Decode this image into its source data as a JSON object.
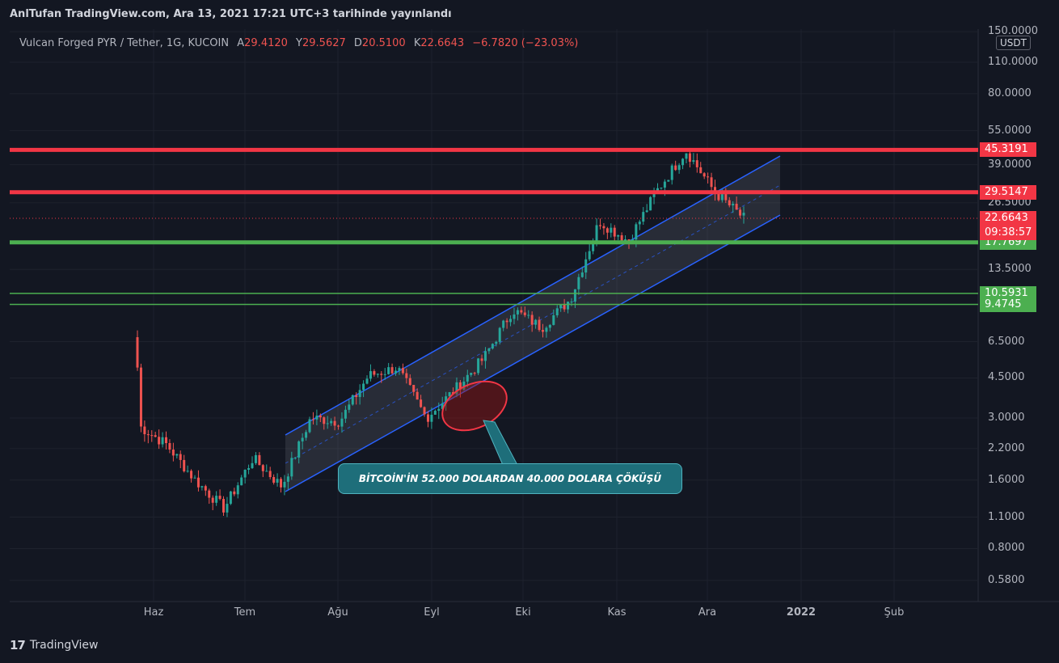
{
  "header": {
    "published": "AnlTufan TradingView.com, Ara 13, 2021 17:21 UTC+3 tarihinde yayınlandı"
  },
  "legend": {
    "symbol": "Vulcan Forged PYR / Tether, 1G, KUCOIN",
    "open_label": "A",
    "open": "29.4120",
    "high_label": "Y",
    "high": "29.5627",
    "low_label": "D",
    "low": "20.5100",
    "close_label": "K",
    "close": "22.6643",
    "change": "−6.7820 (−23.03%)"
  },
  "price_axis": {
    "unit": "USDT",
    "ticks": [
      "150.0000",
      "110.0000",
      "80.0000",
      "55.0000",
      "39.0000",
      "26.5000",
      "13.5000",
      "6.5000",
      "4.5000",
      "3.0000",
      "2.2000",
      "1.6000",
      "1.1000",
      "0.8000",
      "0.5800"
    ]
  },
  "time_axis": {
    "ticks": [
      "Haz",
      "Tem",
      "Ağu",
      "Eyl",
      "Eki",
      "Kas",
      "Ara",
      "2022",
      "Şub"
    ]
  },
  "levels": [
    {
      "label": "45.3191",
      "value": 45.3191,
      "color": "#f23645",
      "kind": "resistance"
    },
    {
      "label": "29.5147",
      "value": 29.5147,
      "color": "#f23645",
      "kind": "resistance"
    },
    {
      "label": "17.7697",
      "value": 17.7697,
      "color": "#4caf50",
      "kind": "support"
    },
    {
      "label": "10.5931",
      "value": 10.5931,
      "color": "#4caf50",
      "kind": "support"
    },
    {
      "label": "9.4745",
      "value": 9.4745,
      "color": "#4caf50",
      "kind": "support"
    }
  ],
  "current_price": {
    "label": "22.6643",
    "countdown": "09:38:57",
    "color": "#f23645"
  },
  "annotation": {
    "text": "BİTCOİN'İN 52.000 DOLARDAN 40.000 DOLARA ÇÖKÜŞÜ"
  },
  "colors": {
    "up": "#26a69a",
    "down": "#ef5350",
    "channel": "#2962ff",
    "background": "#131722"
  },
  "footer": {
    "brand": "TradingView"
  },
  "chart_data": {
    "type": "candlestick",
    "symbol": "PYR/USDT",
    "scale": "log",
    "ylim": [
      0.5,
      160
    ],
    "x_range": [
      "Haz",
      "Şub"
    ],
    "close_path": [
      {
        "t": "Haz",
        "close": 2.8
      },
      {
        "t": "Haz",
        "close": 2.3
      },
      {
        "t": "Haz",
        "close": 1.6
      },
      {
        "t": "Tem",
        "close": 1.2
      },
      {
        "t": "Tem",
        "close": 2.0
      },
      {
        "t": "Tem",
        "close": 1.5
      },
      {
        "t": "Ağu",
        "close": 3.0
      },
      {
        "t": "Ağu",
        "close": 2.9
      },
      {
        "t": "Ağu",
        "close": 4.6
      },
      {
        "t": "Eyl",
        "close": 5.0
      },
      {
        "t": "Eyl",
        "close": 3.0
      },
      {
        "t": "Eyl",
        "close": 4.0
      },
      {
        "t": "Eki",
        "close": 5.5
      },
      {
        "t": "Eki",
        "close": 9.0
      },
      {
        "t": "Eki",
        "close": 7.5
      },
      {
        "t": "Kas",
        "close": 10.0
      },
      {
        "t": "Kas",
        "close": 22.0
      },
      {
        "t": "Kas",
        "close": 18.0
      },
      {
        "t": "Kas",
        "close": 30.0
      },
      {
        "t": "Ara",
        "close": 45.0
      },
      {
        "t": "Ara",
        "close": 29.5
      },
      {
        "t": "Ara",
        "close": 22.6643
      }
    ],
    "last": {
      "open": 29.412,
      "high": 29.5627,
      "low": 20.51,
      "close": 22.6643,
      "change": -6.782,
      "change_pct": -23.03
    }
  }
}
